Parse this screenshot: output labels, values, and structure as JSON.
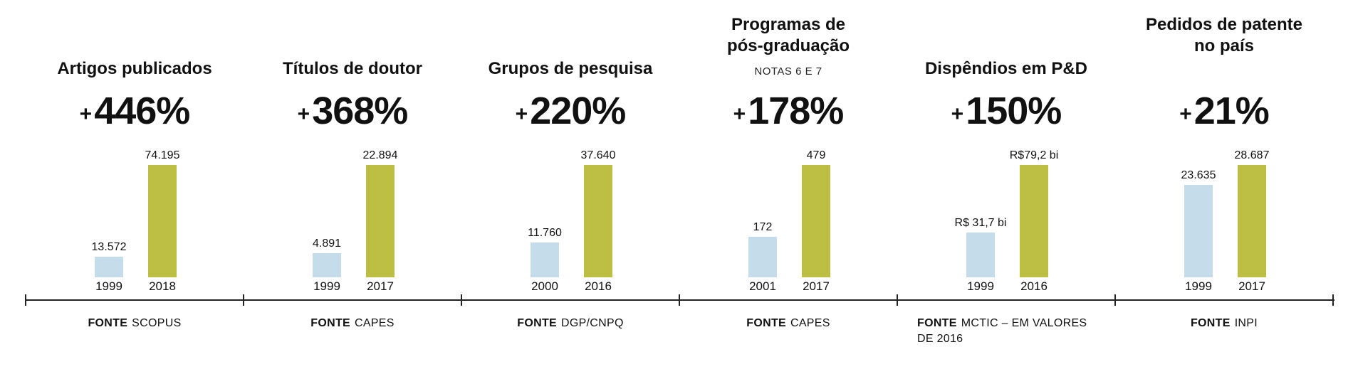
{
  "chart_data": {
    "type": "bar",
    "panels": [
      {
        "title": [
          "Artigos publicados"
        ],
        "subtitle": "",
        "change": "446%",
        "categories": [
          "1999",
          "2018"
        ],
        "values": [
          13572,
          74195
        ],
        "value_labels": [
          "13.572",
          "74.195"
        ],
        "source_label": "FONTE",
        "source": "SCOPUS"
      },
      {
        "title": [
          "Títulos de doutor"
        ],
        "subtitle": "",
        "change": "368%",
        "categories": [
          "1999",
          "2017"
        ],
        "values": [
          4891,
          22894
        ],
        "value_labels": [
          "4.891",
          "22.894"
        ],
        "source_label": "FONTE",
        "source": "CAPES"
      },
      {
        "title": [
          "Grupos de pesquisa"
        ],
        "subtitle": "",
        "change": "220%",
        "categories": [
          "2000",
          "2016"
        ],
        "values": [
          11760,
          37640
        ],
        "value_labels": [
          "11.760",
          "37.640"
        ],
        "source_label": "FONTE",
        "source": "DGP/CNPQ"
      },
      {
        "title": [
          "Programas de",
          "pós-graduação"
        ],
        "subtitle": "NOTAS 6 E 7",
        "change": "178%",
        "categories": [
          "2001",
          "2017"
        ],
        "values": [
          172,
          479
        ],
        "value_labels": [
          "172",
          "479"
        ],
        "source_label": "FONTE",
        "source": "CAPES"
      },
      {
        "title": [
          "Dispêndios em P&D"
        ],
        "subtitle": "",
        "change": "150%",
        "categories": [
          "1999",
          "2016"
        ],
        "values": [
          31.7,
          79.2
        ],
        "value_labels": [
          "R$ 31,7 bi",
          "R$79,2 bi"
        ],
        "source_label": "FONTE",
        "source": "MCTIC – EM VALORES DE 2016"
      },
      {
        "title": [
          "Pedidos de patente",
          "no país"
        ],
        "subtitle": "",
        "change": "21%",
        "categories": [
          "1999",
          "2017"
        ],
        "values": [
          23635,
          28687
        ],
        "value_labels": [
          "23.635",
          "28.687"
        ],
        "source_label": "FONTE",
        "source": "INPI"
      }
    ],
    "plus_sign": "+",
    "colors": {
      "earlier": "#c5dcea",
      "later": "#bcbf44",
      "axis": "#222222"
    }
  }
}
